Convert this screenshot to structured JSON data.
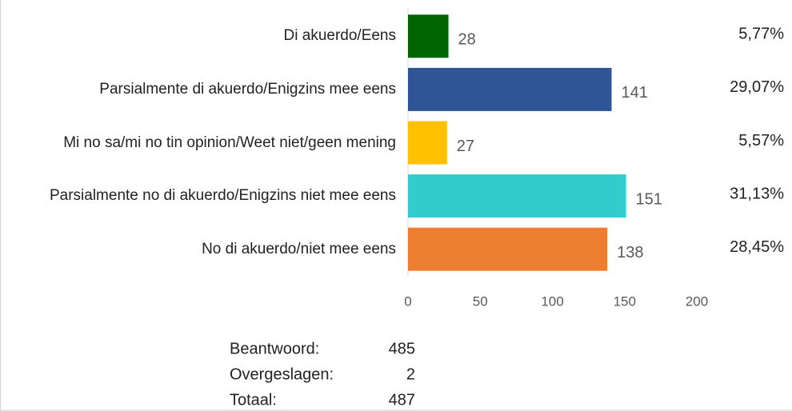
{
  "chart_data": {
    "type": "bar",
    "orientation": "horizontal",
    "categories": [
      "Di akuerdo/Eens",
      "Parsialmente di akuerdo/Enigzins mee eens",
      "Mi no sa/mi no tin opinion/Weet niet/geen mening",
      "Parsialmente no di akuerdo/Enigzins niet mee eens",
      "No di akuerdo/niet mee eens"
    ],
    "values": [
      28,
      141,
      27,
      151,
      138
    ],
    "colors": [
      "#006400",
      "#2f5597",
      "#ffc000",
      "#33cccc",
      "#ed7d31"
    ],
    "percent_values": [
      5.77,
      29.07,
      5.57,
      31.13,
      28.45
    ],
    "percent_labels": [
      "5,77%",
      "29,07%",
      "5,57%",
      "31,13%",
      "28,45%"
    ],
    "xlim": [
      0,
      200
    ],
    "xticks": [
      0,
      50,
      100,
      150,
      200
    ]
  },
  "summary": [
    {
      "label": "Beantwoord:",
      "value": 485
    },
    {
      "label": "Overgeslagen:",
      "value": 2
    },
    {
      "label": "Totaal:",
      "value": 487
    }
  ]
}
